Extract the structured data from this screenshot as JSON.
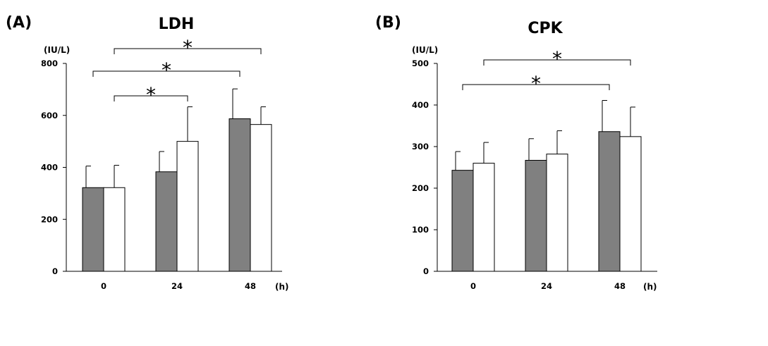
{
  "chart_data": [
    {
      "type": "bar",
      "panel": "(A)",
      "title": "LDH",
      "ylabel": "(IU/L)",
      "xlabel": "(h)",
      "categories": [
        "0",
        "24",
        "48"
      ],
      "ylim": [
        0,
        800
      ],
      "yticks": [
        0,
        200,
        400,
        600,
        800
      ],
      "grid": false,
      "legend": "none",
      "series": [
        {
          "color": "#808080",
          "values": [
            322,
            383,
            587
          ],
          "errors": [
            83,
            78,
            115
          ]
        },
        {
          "color": "#ffffff",
          "values": [
            322,
            500,
            565
          ],
          "errors": [
            86,
            133,
            68
          ]
        }
      ],
      "significance": [
        {
          "from": 0,
          "from_series": 1,
          "to": 1,
          "to_series": 1,
          "label": "*"
        },
        {
          "from": 0,
          "from_series": 0,
          "to": 2,
          "to_series": 0,
          "label": "*"
        },
        {
          "from": 0,
          "from_series": 1,
          "to": 2,
          "to_series": 1,
          "label": "*"
        }
      ]
    },
    {
      "type": "bar",
      "panel": "(B)",
      "title": "CPK",
      "ylabel": "(IU/L)",
      "xlabel": "(h)",
      "categories": [
        "0",
        "24",
        "48"
      ],
      "ylim": [
        0,
        500
      ],
      "yticks": [
        0,
        100,
        200,
        300,
        400,
        500
      ],
      "grid": false,
      "legend": "none",
      "series": [
        {
          "color": "#808080",
          "values": [
            243,
            267,
            336
          ],
          "errors": [
            45,
            52,
            75
          ]
        },
        {
          "color": "#ffffff",
          "values": [
            260,
            282,
            324
          ],
          "errors": [
            50,
            56,
            71
          ]
        }
      ],
      "significance": [
        {
          "from": 0,
          "from_series": 1,
          "to": 2,
          "to_series": 1,
          "label": "*"
        },
        {
          "from": 0,
          "from_series": 0,
          "to": 2,
          "to_series": 0,
          "label": "*"
        }
      ]
    }
  ]
}
